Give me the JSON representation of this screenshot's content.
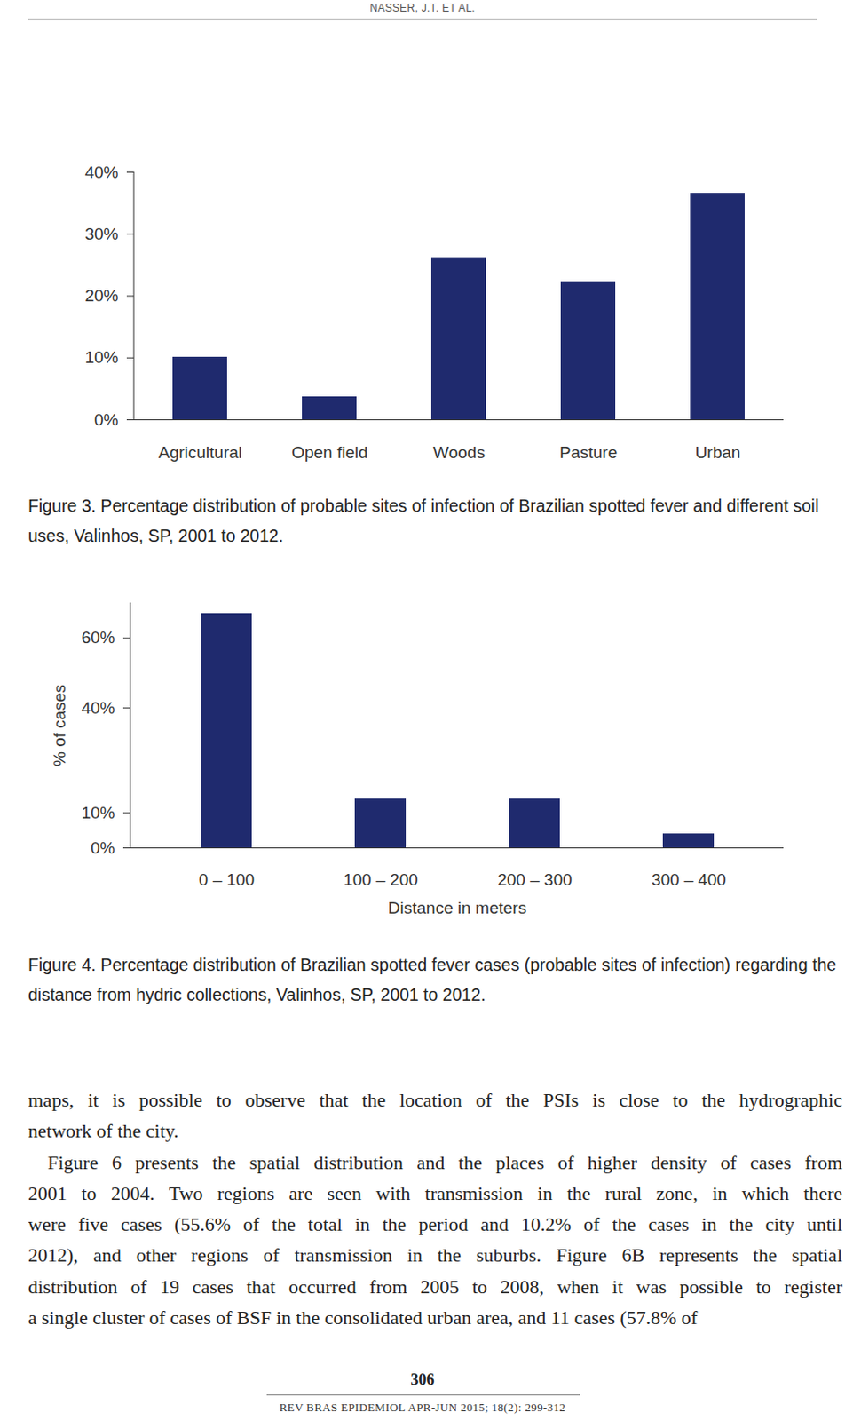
{
  "header": {
    "running_title": "NASSER, J.T. ET AL."
  },
  "chart_data": [
    {
      "type": "bar",
      "categories": [
        "Agricultural",
        "Open field",
        "Woods",
        "Pasture",
        "Urban"
      ],
      "values": [
        10.1,
        3.7,
        26.2,
        22.3,
        36.6
      ],
      "color": "#1f2a6e",
      "ylim": [
        0,
        40
      ],
      "yticks": [
        {
          "value": 0,
          "label": "0%"
        },
        {
          "value": 10,
          "label": "10%"
        },
        {
          "value": 20,
          "label": "20%"
        },
        {
          "value": 30,
          "label": "30%"
        },
        {
          "value": 40,
          "label": "40%"
        }
      ],
      "caption": "Figure 3. Percentage distribution of probable sites of infection of Brazilian spotted fever and different soil uses, Valinhos, SP, 2001 to 2012."
    },
    {
      "type": "bar",
      "categories": [
        "0 – 100",
        "100 – 200",
        "200 – 300",
        "300 – 400"
      ],
      "values": [
        67,
        14,
        14,
        4
      ],
      "color": "#1f2a6e",
      "xlabel": "Distance in meters",
      "ylabel": "% of cases",
      "ylim": [
        0,
        70
      ],
      "yticks": [
        {
          "value": 0,
          "label": "0%"
        },
        {
          "value": 10,
          "label": "10%"
        },
        {
          "value": 40,
          "label": "40%"
        },
        {
          "value": 60,
          "label": "60%"
        }
      ],
      "caption": "Figure 4. Percentage distribution of Brazilian spotted fever cases (probable sites of infection) regarding the distance from hydric collections, Valinhos, SP, 2001 to 2012."
    }
  ],
  "body": {
    "paragraphs": [
      [
        "maps, it is possible to observe that the location of the PSIs is close to the hydrographic",
        "network of the city."
      ],
      [
        "Figure 6 presents the spatial distribution and the places of higher density of cases from",
        "2001 to 2004. Two regions are seen with transmission in the rural zone, in which there",
        "were five cases (55.6% of the total in the period and 10.2% of the cases in the city until",
        "2012), and other regions of transmission in the suburbs. Figure 6B represents the spatial",
        "distribution of 19 cases that occurred from 2005 to 2008, when it was possible to register",
        "a single cluster of cases of BSF in the consolidated urban area, and 11 cases (57.8% of"
      ]
    ]
  },
  "footer": {
    "page_number": "306",
    "journal": "REV BRAS EPIDEMIOL APR-JUN 2015; 18(2): 299-312"
  }
}
